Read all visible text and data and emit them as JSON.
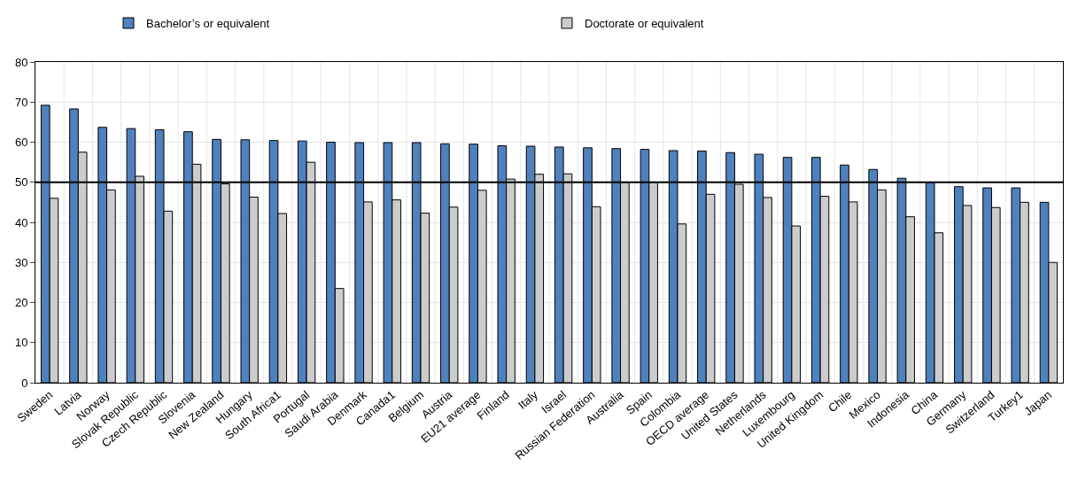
{
  "chart_data": {
    "type": "bar",
    "categories": [
      "Sweden",
      "Latvia",
      "Norway",
      "Slovak Republic",
      "Czech Republic",
      "Slovenia",
      "New Zealand",
      "Hungary",
      "South Africa1",
      "Portugal",
      "Saudi Arabia",
      "Denmark",
      "Canada1",
      "Belgium",
      "Austria",
      "EU21 average",
      "Finland",
      "Italy",
      "Israel",
      "Russian Federation",
      "Australia",
      "Spain",
      "Colombia",
      "OECD average",
      "United States",
      "Netherlands",
      "Luxembourg",
      "United Kingdom",
      "Chile",
      "Mexico",
      "Indonesia",
      "China",
      "Germany",
      "Switzerland",
      "Turkey1",
      "Japan"
    ],
    "series": [
      {
        "name": "Bachelor’s or equivalent",
        "color": "#4f81bd",
        "values": [
          69.2,
          68.3,
          63.7,
          63.4,
          63.1,
          62.6,
          60.7,
          60.6,
          60.4,
          60.3,
          60.0,
          59.9,
          59.9,
          59.9,
          59.6,
          59.5,
          59.1,
          59.0,
          58.8,
          58.6,
          58.4,
          58.2,
          57.9,
          57.8,
          57.4,
          57.0,
          56.2,
          56.2,
          54.3,
          53.2,
          51.0,
          50.0,
          48.9,
          48.6,
          48.6,
          45.0
        ]
      },
      {
        "name": "Doctorate or equivalent",
        "color": "#cccccc",
        "values": [
          46.0,
          57.5,
          48.1,
          51.5,
          42.8,
          54.5,
          49.6,
          46.3,
          42.2,
          55.0,
          23.5,
          45.1,
          45.6,
          42.3,
          43.8,
          48.0,
          50.8,
          52.0,
          52.1,
          43.9,
          50.0,
          50.0,
          39.6,
          47.0,
          49.5,
          46.2,
          39.1,
          46.5,
          45.1,
          48.1,
          41.4,
          37.4,
          44.2,
          43.7,
          45.0,
          30.0
        ]
      }
    ],
    "ylim": [
      0,
      80
    ],
    "yticks": [
      0,
      10,
      20,
      30,
      40,
      50,
      60,
      70,
      80
    ],
    "grid": true,
    "legend": "top",
    "ref_lines": [
      {
        "axis": "y",
        "value": 50,
        "color": "#000000"
      }
    ]
  }
}
